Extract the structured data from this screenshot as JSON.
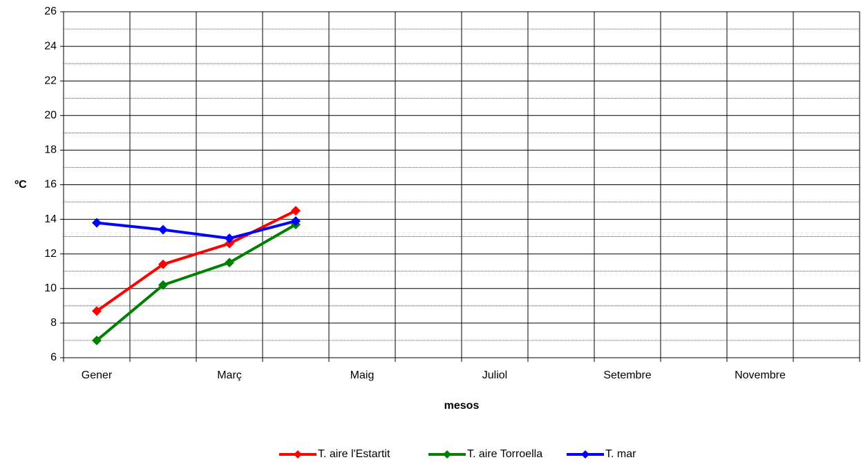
{
  "chart_data": {
    "type": "line",
    "xlabel": "mesos",
    "ylabel": "ºC",
    "categories": [
      "Gener",
      null,
      "Març",
      null,
      "Maig",
      null,
      "Juliol",
      null,
      "Setembre",
      null,
      "Novembre",
      null
    ],
    "series": [
      {
        "name": "T. aire l'Estartit",
        "color": "#ff0000",
        "values": [
          8.7,
          11.4,
          12.6,
          14.5,
          null,
          null,
          null,
          null,
          null,
          null,
          null,
          null
        ]
      },
      {
        "name": "T. aire Torroella",
        "color": "#008000",
        "values": [
          7.0,
          10.2,
          11.5,
          13.7,
          null,
          null,
          null,
          null,
          null,
          null,
          null,
          null
        ]
      },
      {
        "name": "T. mar",
        "color": "#0000ff",
        "values": [
          13.8,
          13.4,
          12.9,
          13.9,
          null,
          null,
          null,
          null,
          null,
          null,
          null,
          null
        ]
      }
    ],
    "ylim": [
      6,
      26
    ],
    "yticks": [
      6,
      8,
      10,
      12,
      14,
      16,
      18,
      20,
      22,
      24,
      26
    ],
    "minor_yticks": [
      7,
      9,
      11,
      13,
      15,
      17,
      19,
      21,
      23,
      25
    ],
    "grid": true,
    "legend": "bottom"
  }
}
